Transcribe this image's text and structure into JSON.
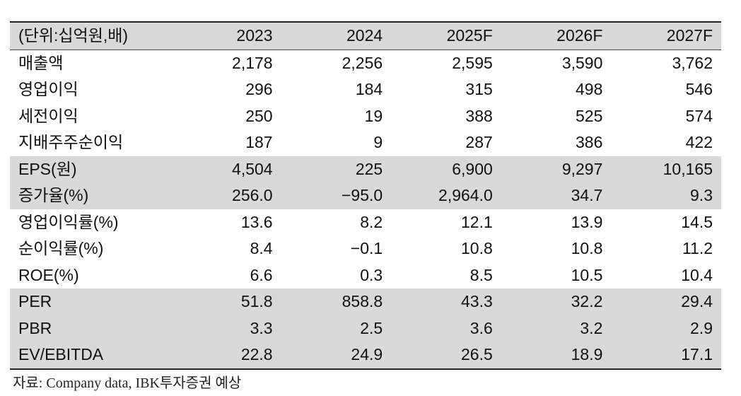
{
  "table": {
    "header": [
      "(단위:십억원,배)",
      "2023",
      "2024",
      "2025F",
      "2026F",
      "2027F"
    ],
    "rows": [
      {
        "label": "매출액",
        "values": [
          "2,178",
          "2,256",
          "2,595",
          "3,590",
          "3,762"
        ]
      },
      {
        "label": "영업이익",
        "values": [
          "296",
          "184",
          "315",
          "498",
          "546"
        ]
      },
      {
        "label": "세전이익",
        "values": [
          "250",
          "19",
          "388",
          "525",
          "574"
        ]
      },
      {
        "label": "지배주주순이익",
        "values": [
          "187",
          "9",
          "287",
          "386",
          "422"
        ]
      },
      {
        "label": "EPS(원)",
        "values": [
          "4,504",
          "225",
          "6,900",
          "9,297",
          "10,165"
        ]
      },
      {
        "label": "증가율(%)",
        "values": [
          "256.0",
          "−95.0",
          "2,964.0",
          "34.7",
          "9.3"
        ]
      },
      {
        "label": "영업이익률(%)",
        "values": [
          "13.6",
          "8.2",
          "12.1",
          "13.9",
          "14.5"
        ]
      },
      {
        "label": "순이익률(%)",
        "values": [
          "8.4",
          "−0.1",
          "10.8",
          "10.8",
          "11.2"
        ]
      },
      {
        "label": "ROE(%)",
        "values": [
          "6.6",
          "0.3",
          "8.5",
          "10.5",
          "10.4"
        ]
      },
      {
        "label": "PER",
        "values": [
          "51.8",
          "858.8",
          "43.3",
          "32.2",
          "29.4"
        ]
      },
      {
        "label": "PBR",
        "values": [
          "3.3",
          "2.5",
          "3.6",
          "3.2",
          "2.9"
        ]
      },
      {
        "label": "EV/EBITDA",
        "values": [
          "22.8",
          "24.9",
          "26.5",
          "18.9",
          "17.1"
        ]
      }
    ]
  },
  "source": "자료: Company data, IBK투자증권 예상"
}
